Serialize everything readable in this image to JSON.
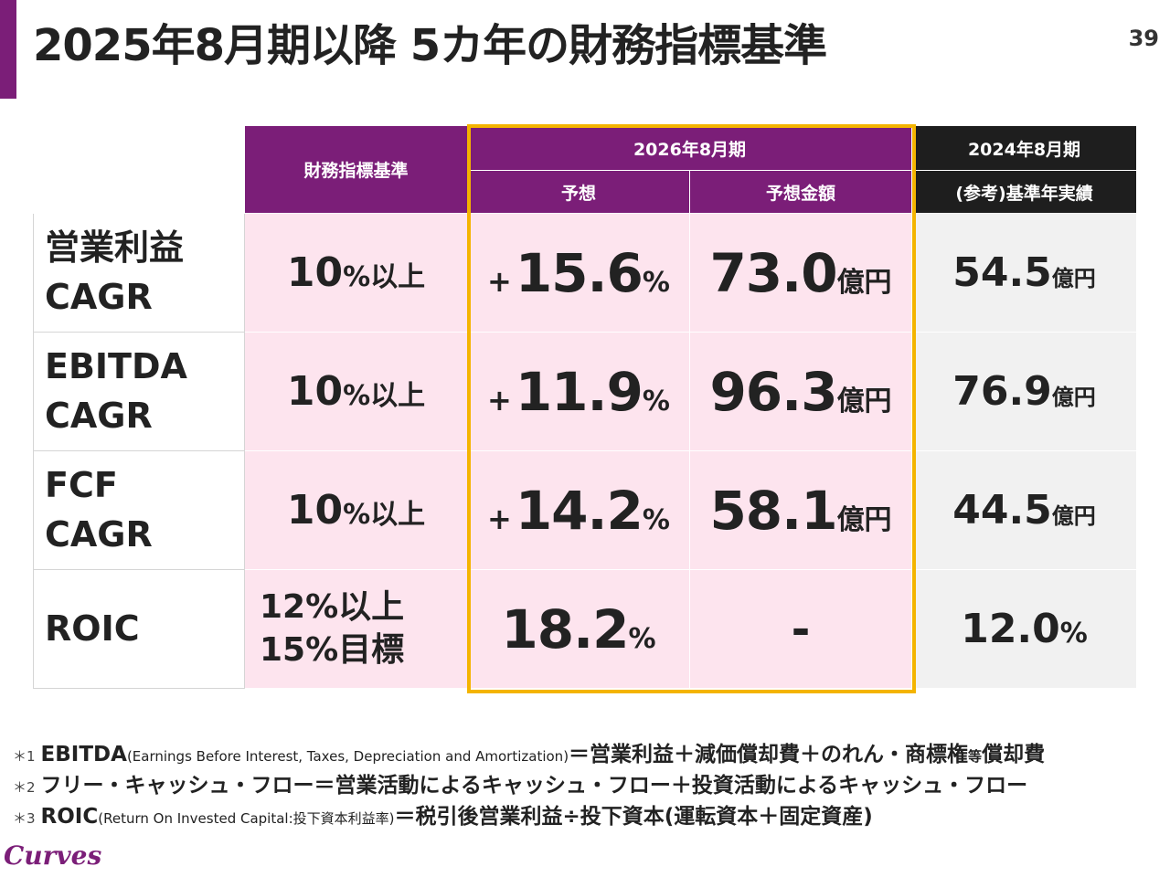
{
  "page": {
    "title": "2025年8月期以降 5カ年の財務指標基準",
    "page_number": "39",
    "accent_color": "#7b1e78",
    "highlight_color": "#f4b400"
  },
  "table": {
    "headers": {
      "criteria": "財務指標基準",
      "forecast_group": "2026年8月期",
      "forecast": "予想",
      "forecast_amount": "予想金額",
      "reference_group": "2024年8月期",
      "reference": "(参考)基準年実績"
    },
    "rows": [
      {
        "metric_line1": "営業利益",
        "metric_line2": "CAGR",
        "criteria_value": "10",
        "criteria_unit": "%以上",
        "forecast_sign": "+",
        "forecast_value": "15.6",
        "forecast_unit": "%",
        "amount_value": "73.0",
        "amount_unit": "億円",
        "reference_value": "54.5",
        "reference_unit": "億円"
      },
      {
        "metric_line1": "EBITDA",
        "metric_line2": "CAGR",
        "criteria_value": "10",
        "criteria_unit": "%以上",
        "forecast_sign": "+",
        "forecast_value": "11.9",
        "forecast_unit": "%",
        "amount_value": "96.3",
        "amount_unit": "億円",
        "reference_value": "76.9",
        "reference_unit": "億円"
      },
      {
        "metric_line1": "FCF",
        "metric_line2": "CAGR",
        "criteria_value": "10",
        "criteria_unit": "%以上",
        "forecast_sign": "+",
        "forecast_value": "14.2",
        "forecast_unit": "%",
        "amount_value": "58.1",
        "amount_unit": "億円",
        "reference_value": "44.5",
        "reference_unit": "億円"
      },
      {
        "metric": "ROIC",
        "criteria_line1": "12%以上",
        "criteria_line2": "15%目標",
        "forecast_value": "18.2",
        "forecast_unit": "%",
        "amount_value": "-",
        "reference_value": "12.0",
        "reference_unit": "%"
      }
    ]
  },
  "footnotes": [
    {
      "mark": "＊1",
      "term": "EBITDA",
      "paren": "(Earnings Before Interest, Taxes, Depreciation and Amortization)",
      "formula_a": "＝営業利益＋減価償却費＋のれん・商標権",
      "formula_small": "等",
      "formula_b": "償却費"
    },
    {
      "mark": "＊2",
      "term": "フリー・キャッシュ・フロー",
      "formula": "＝営業活動によるキャッシュ・フロー＋投資活動によるキャッシュ・フロー"
    },
    {
      "mark": "＊3",
      "term": "ROIC",
      "paren": "(Return On Invested Capital:投下資本利益率)",
      "formula": "＝税引後営業利益÷投下資本(運転資本＋固定資産)"
    }
  ],
  "logo": {
    "text": "Curves",
    "color": "#7b1e78"
  }
}
